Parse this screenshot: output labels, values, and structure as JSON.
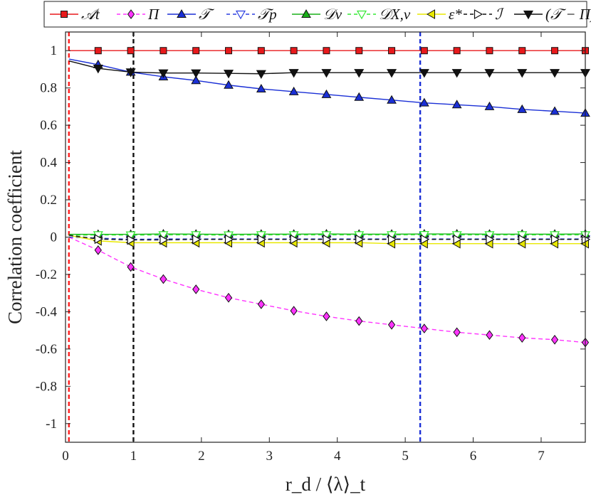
{
  "chart_data": {
    "type": "line",
    "title": "",
    "xlabel": "r_d / ⟨λ⟩_t",
    "ylabel": "Correlation coefficient",
    "xlim": [
      0,
      7.65
    ],
    "ylim": [
      -1.1,
      1.1
    ],
    "xticks": [
      0,
      1,
      2,
      3,
      4,
      5,
      6,
      7
    ],
    "yticks": [
      1,
      0.8,
      0.6,
      0.4,
      0.2,
      0,
      -0.2,
      -0.4,
      -0.6,
      -0.8,
      -1
    ],
    "ytick_labels": [
      "1",
      "0.8",
      "0.6",
      "0.4",
      "0.2",
      "0",
      "-0.2",
      "-0.4",
      "-0.6",
      "-0.8",
      "-1"
    ],
    "grid": false,
    "legend_position": "top",
    "x": [
      0.05,
      0.48,
      0.96,
      1.44,
      1.92,
      2.4,
      2.88,
      3.36,
      3.84,
      4.32,
      4.8,
      5.28,
      5.76,
      6.24,
      6.72,
      7.2,
      7.65
    ],
    "series": [
      {
        "name": "𝒜t",
        "color": "#e8191b",
        "marker": "square",
        "linestyle": "solid",
        "values": [
          1,
          1,
          1,
          1,
          1,
          1,
          1,
          1,
          1,
          1,
          1,
          1,
          1,
          1,
          1,
          1,
          1
        ]
      },
      {
        "name": "Π",
        "color": "#ff33ff",
        "marker": "diamond",
        "linestyle": "dashed",
        "values": [
          0.0,
          -0.07,
          -0.16,
          -0.225,
          -0.28,
          -0.325,
          -0.36,
          -0.395,
          -0.425,
          -0.45,
          -0.47,
          -0.49,
          -0.51,
          -0.525,
          -0.54,
          -0.55,
          -0.565
        ]
      },
      {
        "name": "𝒯",
        "color": "#1a2fd6",
        "marker": "triangle-up",
        "linestyle": "solid",
        "values": [
          0.955,
          0.925,
          0.885,
          0.86,
          0.84,
          0.815,
          0.795,
          0.78,
          0.765,
          0.75,
          0.735,
          0.72,
          0.71,
          0.7,
          0.685,
          0.675,
          0.665
        ]
      },
      {
        "name": "𝒯p",
        "color": "#2b3fe0",
        "marker": "triangle-down-open",
        "linestyle": "dashed",
        "values": [
          0.0,
          -0.005,
          -0.012,
          -0.01,
          -0.01,
          -0.01,
          -0.01,
          -0.01,
          -0.01,
          -0.01,
          -0.01,
          -0.01,
          -0.01,
          -0.01,
          -0.01,
          -0.01,
          -0.01
        ]
      },
      {
        "name": "𝒟ν",
        "color": "#18b018",
        "marker": "triangle-up",
        "linestyle": "solid",
        "values": [
          0.015,
          0.015,
          0.015,
          0.017,
          0.016,
          0.015,
          0.016,
          0.016,
          0.017,
          0.016,
          0.016,
          0.017,
          0.017,
          0.016,
          0.016,
          0.016,
          0.017
        ]
      },
      {
        "name": "𝒟X,ν",
        "color": "#33e833",
        "marker": "triangle-down-open",
        "linestyle": "dashed",
        "values": [
          0.01,
          0.012,
          0.011,
          0.012,
          0.012,
          0.011,
          0.012,
          0.012,
          0.012,
          0.012,
          0.012,
          0.013,
          0.012,
          0.012,
          0.012,
          0.012,
          0.012
        ]
      },
      {
        "name": "ε*",
        "color": "#e8e800",
        "marker": "triangle-left",
        "linestyle": "solid",
        "values": [
          0.01,
          -0.02,
          -0.03,
          -0.03,
          -0.03,
          -0.03,
          -0.03,
          -0.03,
          -0.03,
          -0.03,
          -0.035,
          -0.035,
          -0.035,
          -0.035,
          -0.035,
          -0.035,
          -0.035
        ]
      },
      {
        "name": "ℐ",
        "color": "#111111",
        "marker": "triangle-right-open",
        "linestyle": "dashed",
        "values": [
          0.01,
          -0.01,
          -0.015,
          -0.015,
          -0.012,
          -0.012,
          -0.012,
          -0.012,
          -0.012,
          -0.012,
          -0.012,
          -0.012,
          -0.012,
          -0.012,
          -0.012,
          -0.012,
          -0.012
        ]
      },
      {
        "name": "(𝒯 − Π)",
        "color": "#111111",
        "marker": "triangle-down",
        "linestyle": "solid",
        "values": [
          0.945,
          0.905,
          0.885,
          0.88,
          0.88,
          0.878,
          0.876,
          0.882,
          0.882,
          0.882,
          0.882,
          0.882,
          0.882,
          0.882,
          0.882,
          0.882,
          0.882
        ]
      }
    ],
    "vlines": [
      {
        "x": 0.05,
        "color": "#ff2020"
      },
      {
        "x": 1.0,
        "color": "#111111"
      },
      {
        "x": 5.22,
        "color": "#1a2fd6"
      }
    ]
  }
}
